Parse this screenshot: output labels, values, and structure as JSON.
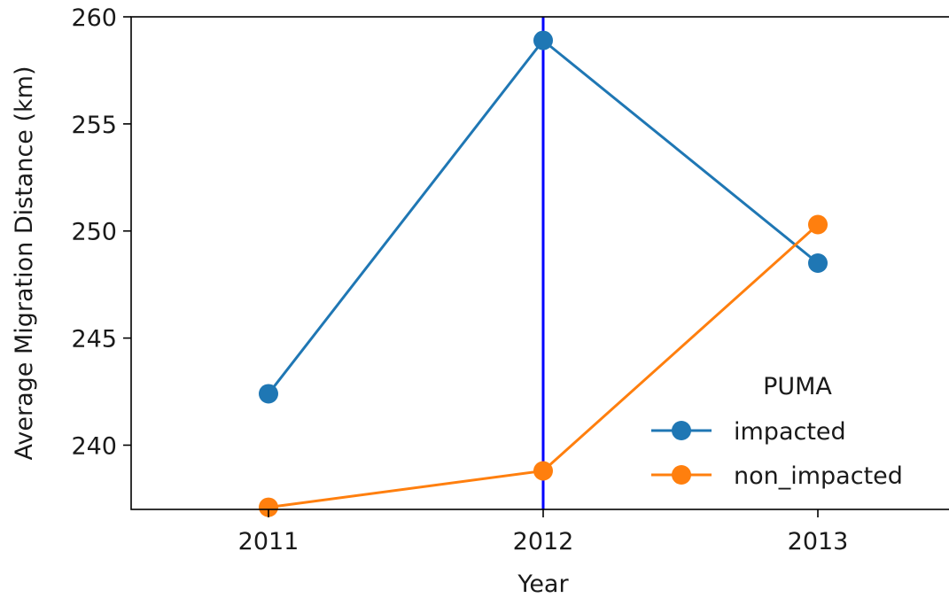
{
  "chart_data": {
    "type": "line",
    "xlabel": "Year",
    "ylabel": "Average Migration Distance (km)",
    "categories": [
      "2011",
      "2012",
      "2013"
    ],
    "x": [
      2011,
      2012,
      2013
    ],
    "xlim": [
      2010.5,
      2013.5
    ],
    "ylim": [
      237.0,
      260.0
    ],
    "yticks": [
      240,
      245,
      250,
      255,
      260
    ],
    "grid": false,
    "series": [
      {
        "name": "impacted",
        "values": [
          242.4,
          258.9,
          248.5
        ],
        "color": "#1f77b4",
        "marker": "circle"
      },
      {
        "name": "non_impacted",
        "values": [
          237.1,
          238.8,
          250.3
        ],
        "color": "#ff7f0e",
        "marker": "circle"
      }
    ],
    "vline": {
      "x": 2012,
      "color": "#0000ff"
    },
    "legend": {
      "title": "PUMA",
      "placement": "lower-right"
    }
  }
}
